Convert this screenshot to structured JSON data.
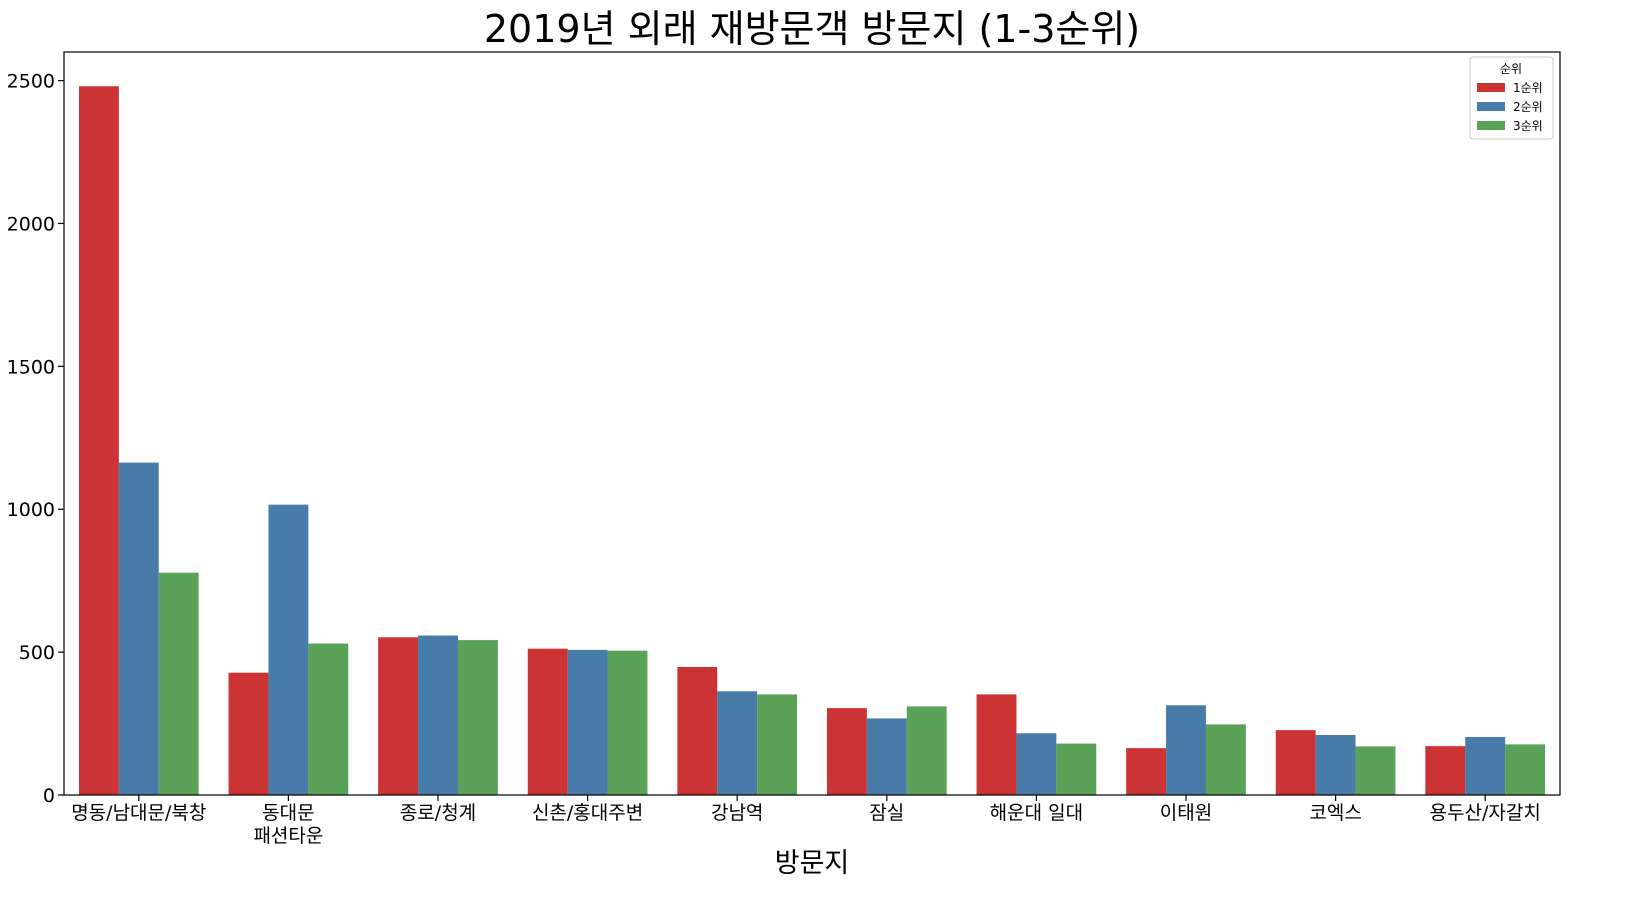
{
  "chart_data": {
    "type": "bar",
    "title": "2019년 외래 재방문객 방문지 (1-3순위)",
    "xlabel": "방문지",
    "ylabel": "",
    "categories": [
      "명동/남대문/북창",
      "동대문\n패션타운",
      "종로/청계",
      "신촌/홍대주변",
      "강남역",
      "잠실",
      "해운대 일대",
      "이태원",
      "코엑스",
      "용두산/자갈치"
    ],
    "series": [
      {
        "name": "1순위",
        "color": "#cb3335",
        "values": [
          2480,
          428,
          552,
          512,
          448,
          304,
          352,
          164,
          227,
          171
        ]
      },
      {
        "name": "2순위",
        "color": "#477ca8",
        "values": [
          1163,
          1016,
          558,
          508,
          363,
          268,
          216,
          314,
          210,
          203
        ]
      },
      {
        "name": "3순위",
        "color": "#59a257",
        "values": [
          778,
          530,
          542,
          505,
          352,
          310,
          180,
          247,
          170,
          177
        ]
      }
    ],
    "ylim": [
      0,
      2600
    ],
    "yticks": [
      0,
      500,
      1000,
      1500,
      2000,
      2500
    ],
    "grid": false,
    "legend": {
      "title": "순위",
      "position": "top-right"
    }
  }
}
